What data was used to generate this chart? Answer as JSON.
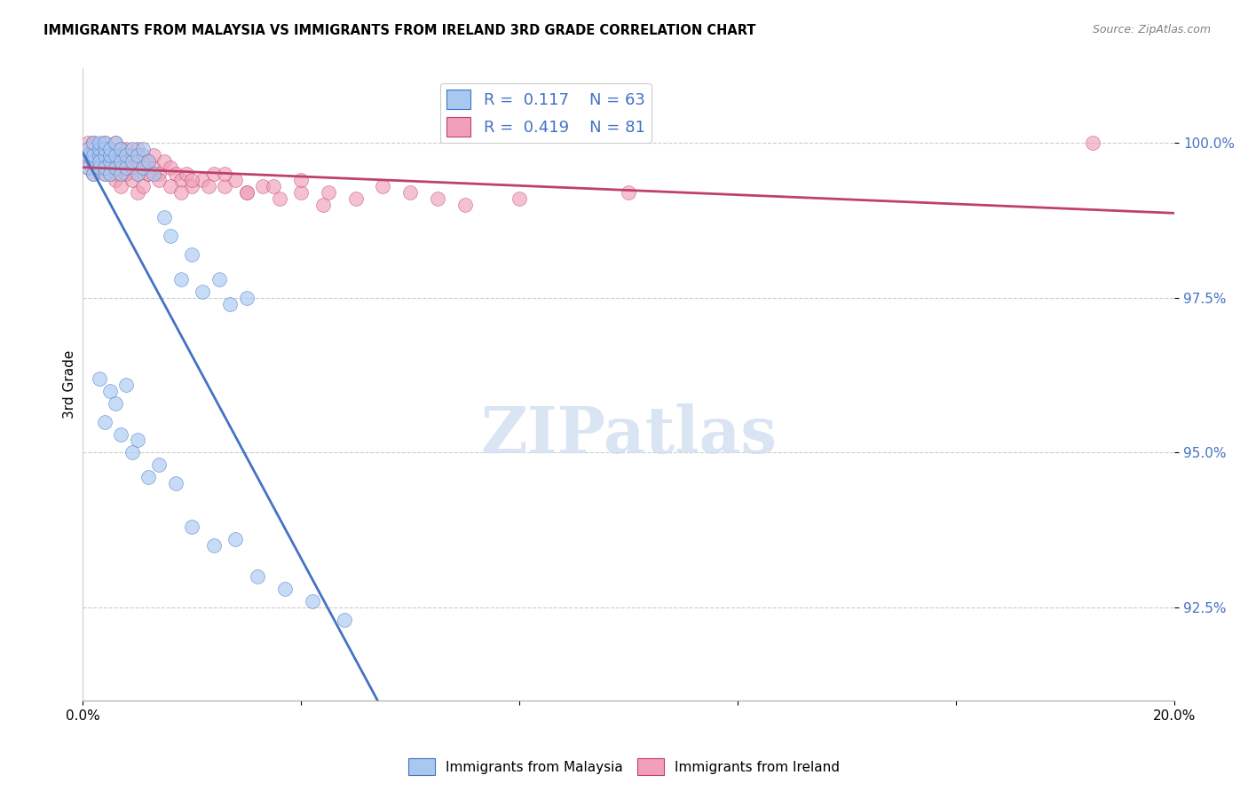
{
  "title": "IMMIGRANTS FROM MALAYSIA VS IMMIGRANTS FROM IRELAND 3RD GRADE CORRELATION CHART",
  "source": "Source: ZipAtlas.com",
  "ylabel": "3rd Grade",
  "y_ticks": [
    92.5,
    95.0,
    97.5,
    100.0
  ],
  "y_tick_labels": [
    "92.5%",
    "95.0%",
    "97.5%",
    "100.0%"
  ],
  "xlim": [
    0.0,
    0.2
  ],
  "ylim": [
    91.0,
    101.2
  ],
  "legend_labels": [
    "Immigrants from Malaysia",
    "Immigrants from Ireland"
  ],
  "r_malaysia": 0.117,
  "n_malaysia": 63,
  "r_ireland": 0.419,
  "n_ireland": 81,
  "color_malaysia": "#A8C8F0",
  "color_ireland": "#F0A0B8",
  "trendline_color_malaysia": "#4472C4",
  "trendline_color_ireland": "#C0406A",
  "watermark_color": "#D0DFF0",
  "malaysia_x": [
    0.001,
    0.001,
    0.001,
    0.002,
    0.002,
    0.002,
    0.002,
    0.003,
    0.003,
    0.003,
    0.003,
    0.003,
    0.004,
    0.004,
    0.004,
    0.004,
    0.004,
    0.005,
    0.005,
    0.005,
    0.005,
    0.006,
    0.006,
    0.006,
    0.007,
    0.007,
    0.007,
    0.008,
    0.008,
    0.009,
    0.009,
    0.01,
    0.01,
    0.011,
    0.011,
    0.012,
    0.013,
    0.015,
    0.016,
    0.018,
    0.02,
    0.022,
    0.025,
    0.027,
    0.03,
    0.003,
    0.004,
    0.005,
    0.006,
    0.007,
    0.008,
    0.009,
    0.01,
    0.012,
    0.014,
    0.017,
    0.02,
    0.024,
    0.028,
    0.032,
    0.037,
    0.042,
    0.048
  ],
  "malaysia_y": [
    99.8,
    99.6,
    99.9,
    99.7,
    99.8,
    99.5,
    100.0,
    99.6,
    99.8,
    99.9,
    99.7,
    100.0,
    99.5,
    99.8,
    99.6,
    99.9,
    100.0,
    99.7,
    99.8,
    99.5,
    99.9,
    99.6,
    99.8,
    100.0,
    99.5,
    99.7,
    99.9,
    99.6,
    99.8,
    99.7,
    99.9,
    99.5,
    99.8,
    99.6,
    99.9,
    99.7,
    99.5,
    98.8,
    98.5,
    97.8,
    98.2,
    97.6,
    97.8,
    97.4,
    97.5,
    96.2,
    95.5,
    96.0,
    95.8,
    95.3,
    96.1,
    95.0,
    95.2,
    94.6,
    94.8,
    94.5,
    93.8,
    93.5,
    93.6,
    93.0,
    92.8,
    92.6,
    92.3
  ],
  "ireland_x": [
    0.001,
    0.001,
    0.001,
    0.002,
    0.002,
    0.002,
    0.002,
    0.003,
    0.003,
    0.003,
    0.003,
    0.004,
    0.004,
    0.004,
    0.004,
    0.005,
    0.005,
    0.005,
    0.005,
    0.006,
    0.006,
    0.006,
    0.007,
    0.007,
    0.007,
    0.008,
    0.008,
    0.008,
    0.009,
    0.009,
    0.01,
    0.01,
    0.01,
    0.011,
    0.011,
    0.012,
    0.012,
    0.013,
    0.013,
    0.014,
    0.015,
    0.016,
    0.017,
    0.018,
    0.019,
    0.02,
    0.022,
    0.024,
    0.026,
    0.028,
    0.03,
    0.033,
    0.036,
    0.04,
    0.044,
    0.005,
    0.006,
    0.007,
    0.008,
    0.009,
    0.01,
    0.011,
    0.012,
    0.014,
    0.016,
    0.018,
    0.02,
    0.023,
    0.026,
    0.03,
    0.035,
    0.04,
    0.045,
    0.05,
    0.055,
    0.06,
    0.065,
    0.07,
    0.08,
    0.1,
    0.185
  ],
  "ireland_y": [
    99.8,
    99.6,
    100.0,
    99.7,
    99.9,
    99.5,
    100.0,
    99.6,
    99.8,
    99.9,
    99.7,
    99.5,
    99.8,
    99.9,
    100.0,
    99.6,
    99.8,
    99.7,
    99.9,
    99.5,
    99.8,
    100.0,
    99.6,
    99.8,
    99.9,
    99.5,
    99.7,
    99.9,
    99.6,
    99.8,
    99.5,
    99.7,
    99.9,
    99.6,
    99.8,
    99.5,
    99.7,
    99.6,
    99.8,
    99.5,
    99.7,
    99.6,
    99.5,
    99.4,
    99.5,
    99.3,
    99.4,
    99.5,
    99.3,
    99.4,
    99.2,
    99.3,
    99.1,
    99.2,
    99.0,
    99.5,
    99.4,
    99.3,
    99.5,
    99.4,
    99.2,
    99.3,
    99.5,
    99.4,
    99.3,
    99.2,
    99.4,
    99.3,
    99.5,
    99.2,
    99.3,
    99.4,
    99.2,
    99.1,
    99.3,
    99.2,
    99.1,
    99.0,
    99.1,
    99.2,
    100.0
  ]
}
